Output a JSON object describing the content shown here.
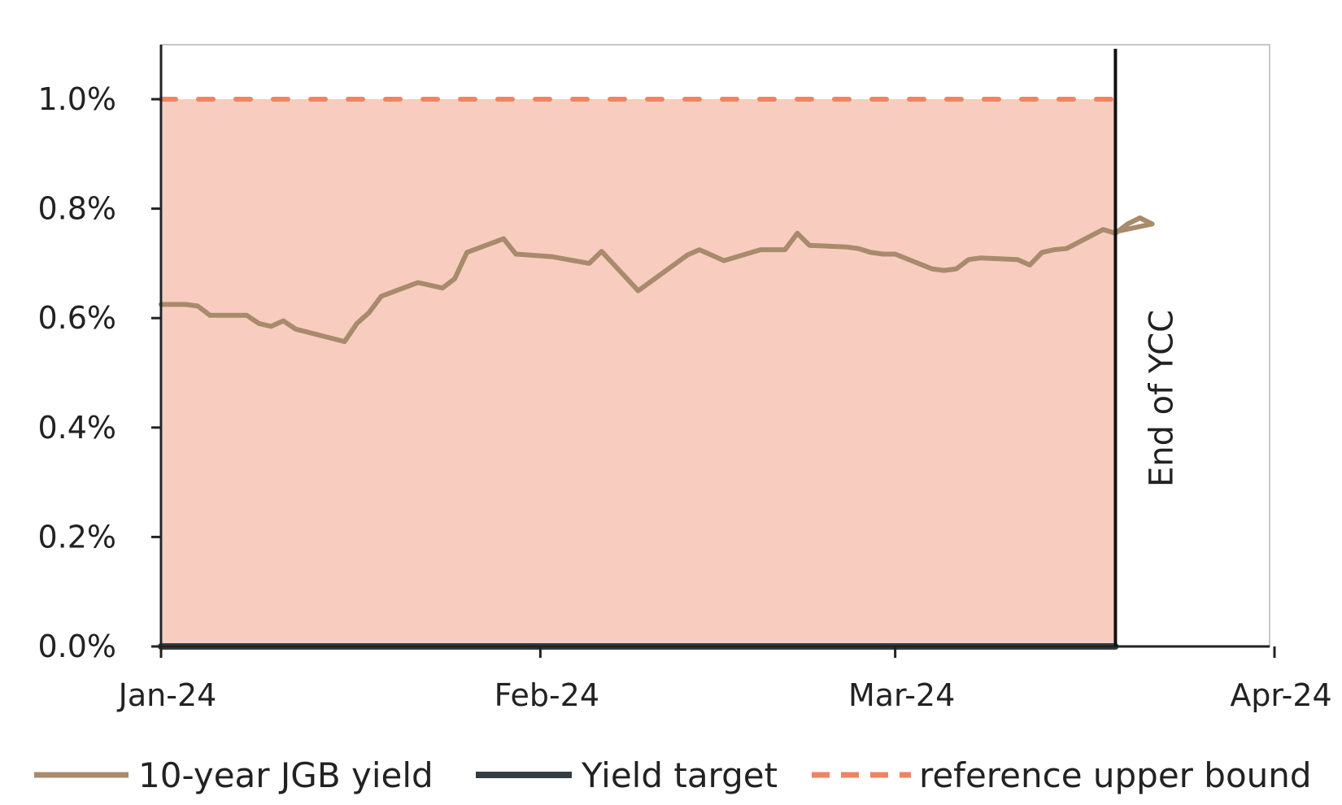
{
  "chart_data": {
    "type": "line",
    "title": "",
    "xlabel": "",
    "ylabel": "",
    "x_ticks": [
      "Jan-24",
      "Feb-24",
      "Mar-24",
      "Apr-24"
    ],
    "x_range": [
      "2024-01-01",
      "2024-04-01"
    ],
    "y_ticks": [
      "0.0%",
      "0.2%",
      "0.4%",
      "0.6%",
      "0.8%",
      "1.0%"
    ],
    "ylim": [
      0,
      1.1
    ],
    "grid": false,
    "legend_position": "bottom",
    "annotation": {
      "text": "End of YCC",
      "date": "2024-03-19"
    },
    "shaded_band": {
      "from": 0,
      "to": 1.0,
      "x_start": "2024-01-01",
      "x_end": "2024-03-19",
      "color": "#f8cdbf"
    },
    "series": [
      {
        "name": "10-year JGB yield",
        "color": "#a88a6c",
        "style": "solid",
        "points": [
          [
            "2024-01-01",
            0.625
          ],
          [
            "2024-01-03",
            0.625
          ],
          [
            "2024-01-04",
            0.622
          ],
          [
            "2024-01-05",
            0.605
          ],
          [
            "2024-01-08",
            0.605
          ],
          [
            "2024-01-09",
            0.59
          ],
          [
            "2024-01-10",
            0.585
          ],
          [
            "2024-01-11",
            0.595
          ],
          [
            "2024-01-12",
            0.58
          ],
          [
            "2024-01-16",
            0.557
          ],
          [
            "2024-01-17",
            0.59
          ],
          [
            "2024-01-18",
            0.61
          ],
          [
            "2024-01-19",
            0.64
          ],
          [
            "2024-01-22",
            0.665
          ],
          [
            "2024-01-24",
            0.655
          ],
          [
            "2024-01-25",
            0.672
          ],
          [
            "2024-01-26",
            0.72
          ],
          [
            "2024-01-29",
            0.745
          ],
          [
            "2024-01-30",
            0.717
          ],
          [
            "2024-02-02",
            0.712
          ],
          [
            "2024-02-05",
            0.7
          ],
          [
            "2024-02-06",
            0.722
          ],
          [
            "2024-02-09",
            0.65
          ],
          [
            "2024-02-13",
            0.715
          ],
          [
            "2024-02-14",
            0.725
          ],
          [
            "2024-02-15",
            0.715
          ],
          [
            "2024-02-16",
            0.705
          ],
          [
            "2024-02-19",
            0.725
          ],
          [
            "2024-02-21",
            0.725
          ],
          [
            "2024-02-22",
            0.755
          ],
          [
            "2024-02-23",
            0.733
          ],
          [
            "2024-02-26",
            0.73
          ],
          [
            "2024-02-27",
            0.727
          ],
          [
            "2024-02-28",
            0.72
          ],
          [
            "2024-02-29",
            0.717
          ],
          [
            "2024-03-01",
            0.717
          ],
          [
            "2024-03-04",
            0.69
          ],
          [
            "2024-03-05",
            0.687
          ],
          [
            "2024-03-06",
            0.69
          ],
          [
            "2024-03-07",
            0.707
          ],
          [
            "2024-03-08",
            0.71
          ],
          [
            "2024-03-11",
            0.707
          ],
          [
            "2024-03-12",
            0.697
          ],
          [
            "2024-03-13",
            0.72
          ],
          [
            "2024-03-14",
            0.725
          ],
          [
            "2024-03-15",
            0.727
          ],
          [
            "2024-03-18",
            0.762
          ],
          [
            "2024-03-19",
            0.755
          ],
          [
            "2024-03-20",
            0.772
          ],
          [
            "2024-03-21",
            0.783
          ],
          [
            "2024-03-22",
            0.772
          ],
          [
            "2024-03-19",
            0.758
          ]
        ]
      },
      {
        "name": "Yield target",
        "color": "#333d43",
        "style": "solid",
        "points": [
          [
            "2024-01-01",
            0.0
          ],
          [
            "2024-03-19",
            0.0
          ]
        ]
      },
      {
        "name": "reference upper bound",
        "color": "#ee8462",
        "style": "dashed",
        "points": [
          [
            "2024-01-01",
            1.0
          ],
          [
            "2024-03-19",
            1.0
          ]
        ]
      }
    ]
  }
}
